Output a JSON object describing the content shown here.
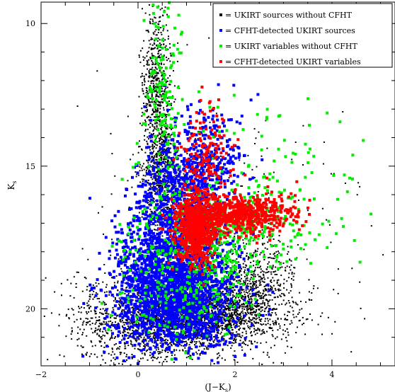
{
  "chart_data": {
    "type": "scatter",
    "title": "",
    "xlabel": "(J−K",
    "xlabel_sub": "s",
    "xlabel_close": ")",
    "ylabel": "K",
    "ylabel_sub": "s",
    "xlim": [
      -2,
      5.3
    ],
    "ylim": [
      22.0,
      9.25
    ],
    "y_inverted": true,
    "xticks_major": [
      -2,
      0,
      2,
      4
    ],
    "yticks_major": [
      10,
      15,
      20
    ],
    "grid": false,
    "legend_position": "top-right",
    "series": [
      {
        "name": "= UKIRT sources without CFHT",
        "color": "#000000",
        "clusters": [
          {
            "cx": 0.4,
            "cy": 12.5,
            "sx": 0.15,
            "sy": 1.6,
            "n": 700
          },
          {
            "cx": 0.5,
            "cy": 15.5,
            "sx": 0.2,
            "sy": 1.0,
            "n": 500
          },
          {
            "cx": 1.5,
            "cy": 20.2,
            "sx": 0.8,
            "sy": 0.6,
            "n": 1700
          },
          {
            "cx": 0.5,
            "cy": 20.6,
            "sx": 0.55,
            "sy": 0.6,
            "n": 700
          },
          {
            "cx": 2.4,
            "cy": 19.0,
            "sx": 0.4,
            "sy": 0.8,
            "n": 500
          },
          {
            "cx": -0.6,
            "cy": 20.5,
            "sx": 0.5,
            "sy": 0.8,
            "n": 350
          },
          {
            "cx": 1.6,
            "cy": 17.5,
            "sx": 1.4,
            "sy": 2.5,
            "n": 300
          }
        ]
      },
      {
        "name": "= CFHT-detected UKIRT sources",
        "color": "#0000ff",
        "clusters": [
          {
            "cx": 0.8,
            "cy": 19.5,
            "sx": 0.6,
            "sy": 1.0,
            "n": 1800
          },
          {
            "cx": 0.9,
            "cy": 16.5,
            "sx": 0.4,
            "sy": 1.4,
            "n": 700
          },
          {
            "cx": 1.5,
            "cy": 15.0,
            "sx": 0.4,
            "sy": 1.0,
            "n": 300
          },
          {
            "cx": 0.3,
            "cy": 18.0,
            "sx": 0.4,
            "sy": 1.2,
            "n": 400
          }
        ]
      },
      {
        "name": "= UKIRT variables without CFHT",
        "color": "#00ee00",
        "clusters": [
          {
            "cx": 0.5,
            "cy": 12.5,
            "sx": 0.2,
            "sy": 1.8,
            "n": 150
          },
          {
            "cx": 2.0,
            "cy": 17.0,
            "sx": 0.8,
            "sy": 0.8,
            "n": 350
          },
          {
            "cx": 1.0,
            "cy": 19.0,
            "sx": 0.7,
            "sy": 1.0,
            "n": 250
          },
          {
            "cx": 2.5,
            "cy": 15.5,
            "sx": 1.2,
            "sy": 1.5,
            "n": 100
          }
        ]
      },
      {
        "name": "= CFHT-detected UKIRT variables",
        "color": "#ff0000",
        "clusters": [
          {
            "cx": 1.2,
            "cy": 17.2,
            "sx": 0.2,
            "sy": 0.6,
            "n": 700
          },
          {
            "cx": 2.0,
            "cy": 16.7,
            "sx": 0.5,
            "sy": 0.35,
            "n": 550
          },
          {
            "cx": 1.4,
            "cy": 14.5,
            "sx": 0.25,
            "sy": 0.8,
            "n": 140
          },
          {
            "cx": 2.8,
            "cy": 16.6,
            "sx": 0.3,
            "sy": 0.35,
            "n": 100
          }
        ]
      }
    ]
  }
}
